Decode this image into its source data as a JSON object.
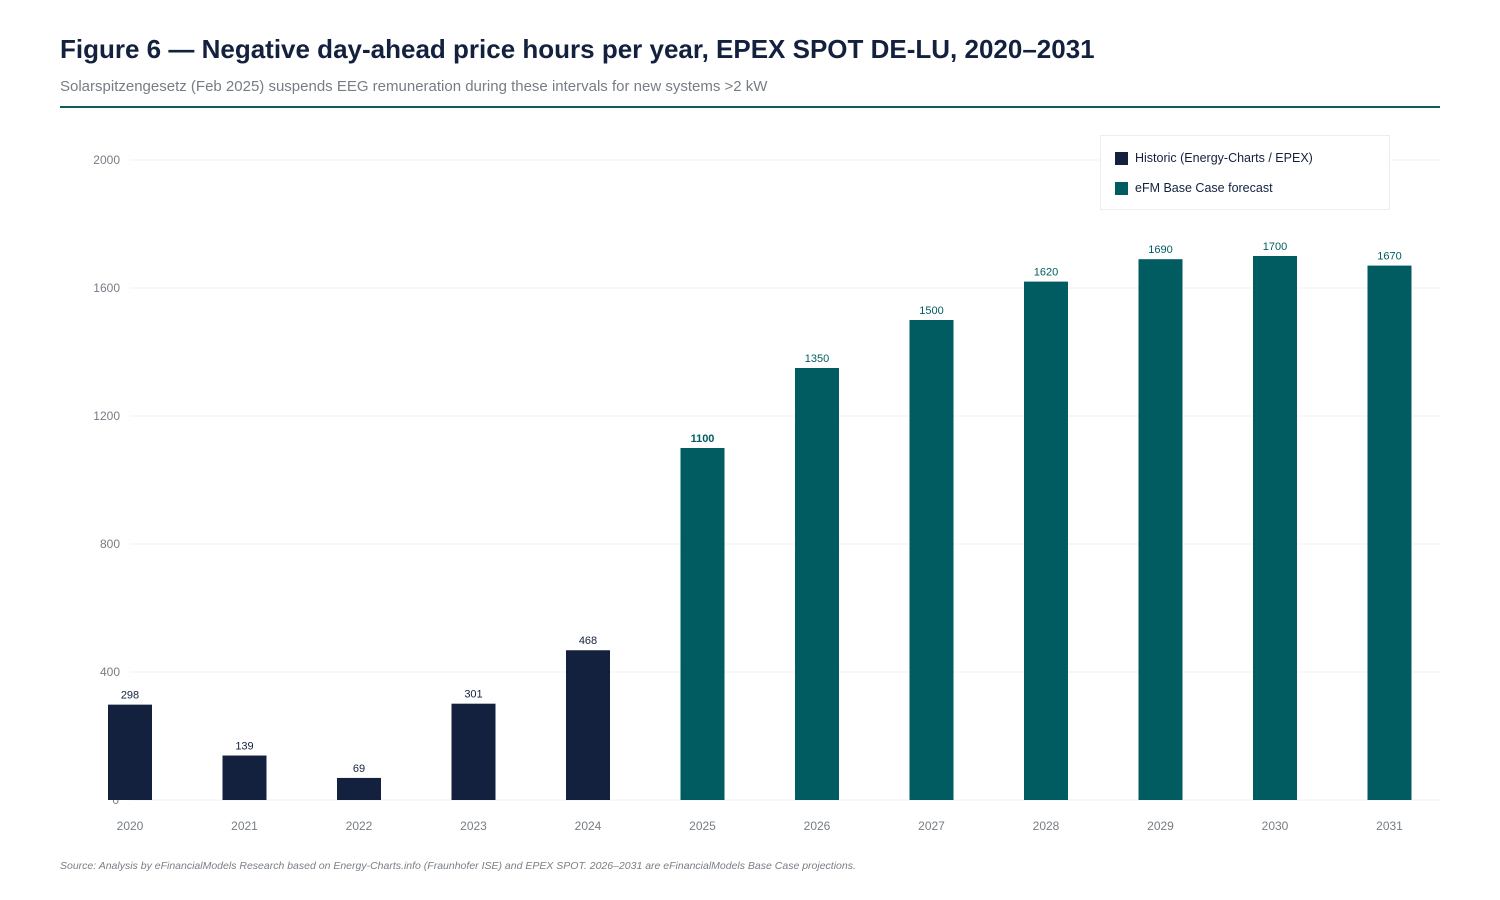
{
  "header": {
    "title": "Figure 6 — Negative day-ahead price hours per year, EPEX SPOT DE-LU, 2020–2031",
    "subtitle": "Solarspitzengesetz (Feb 2025) suspends EEG remuneration during these intervals for new systems >2 kW"
  },
  "legend": {
    "items": [
      {
        "label": "Historic (Energy-Charts / EPEX)",
        "color": "#13213f"
      },
      {
        "label": "eFM Base Case forecast",
        "color": "#005c60"
      }
    ]
  },
  "colors": {
    "historic": "#13213f",
    "forecast": "#005c60",
    "rule": "#0e5c5e",
    "grid": "#f0f0f0",
    "axis_text": "#777d85"
  },
  "chart_data": {
    "type": "bar",
    "title": "Figure 6 — Negative day-ahead price hours per year, EPEX SPOT DE-LU, 2020–2031",
    "xlabel": "",
    "ylabel": "",
    "categories": [
      "2020",
      "2021",
      "2022",
      "2023",
      "2024",
      "2025",
      "2026",
      "2027",
      "2028",
      "2029",
      "2030",
      "2031"
    ],
    "series": [
      {
        "name": "Historic (Energy-Charts / EPEX)",
        "values": [
          298,
          139,
          69,
          301,
          468,
          null,
          null,
          null,
          null,
          null,
          null,
          null
        ]
      },
      {
        "name": "eFM Base Case forecast",
        "values": [
          null,
          null,
          null,
          null,
          null,
          1100,
          1350,
          1500,
          1620,
          1690,
          1700,
          1670
        ]
      }
    ],
    "data_labels": [
      "298",
      "139",
      "69",
      "301",
      "468",
      "1100",
      "1350",
      "1500",
      "1620",
      "1690",
      "1700",
      "1670"
    ],
    "ylim": [
      0,
      2000
    ],
    "yticks": [
      "0",
      "400",
      "800",
      "1200",
      "1600",
      "2000"
    ],
    "grid": true,
    "legend_position": "top-right"
  },
  "footer": {
    "source": "Source: Analysis by eFinancialModels Research based on Energy-Charts.info (Fraunhofer ISE) and EPEX SPOT. 2026–2031 are eFinancialModels Base Case projections."
  }
}
